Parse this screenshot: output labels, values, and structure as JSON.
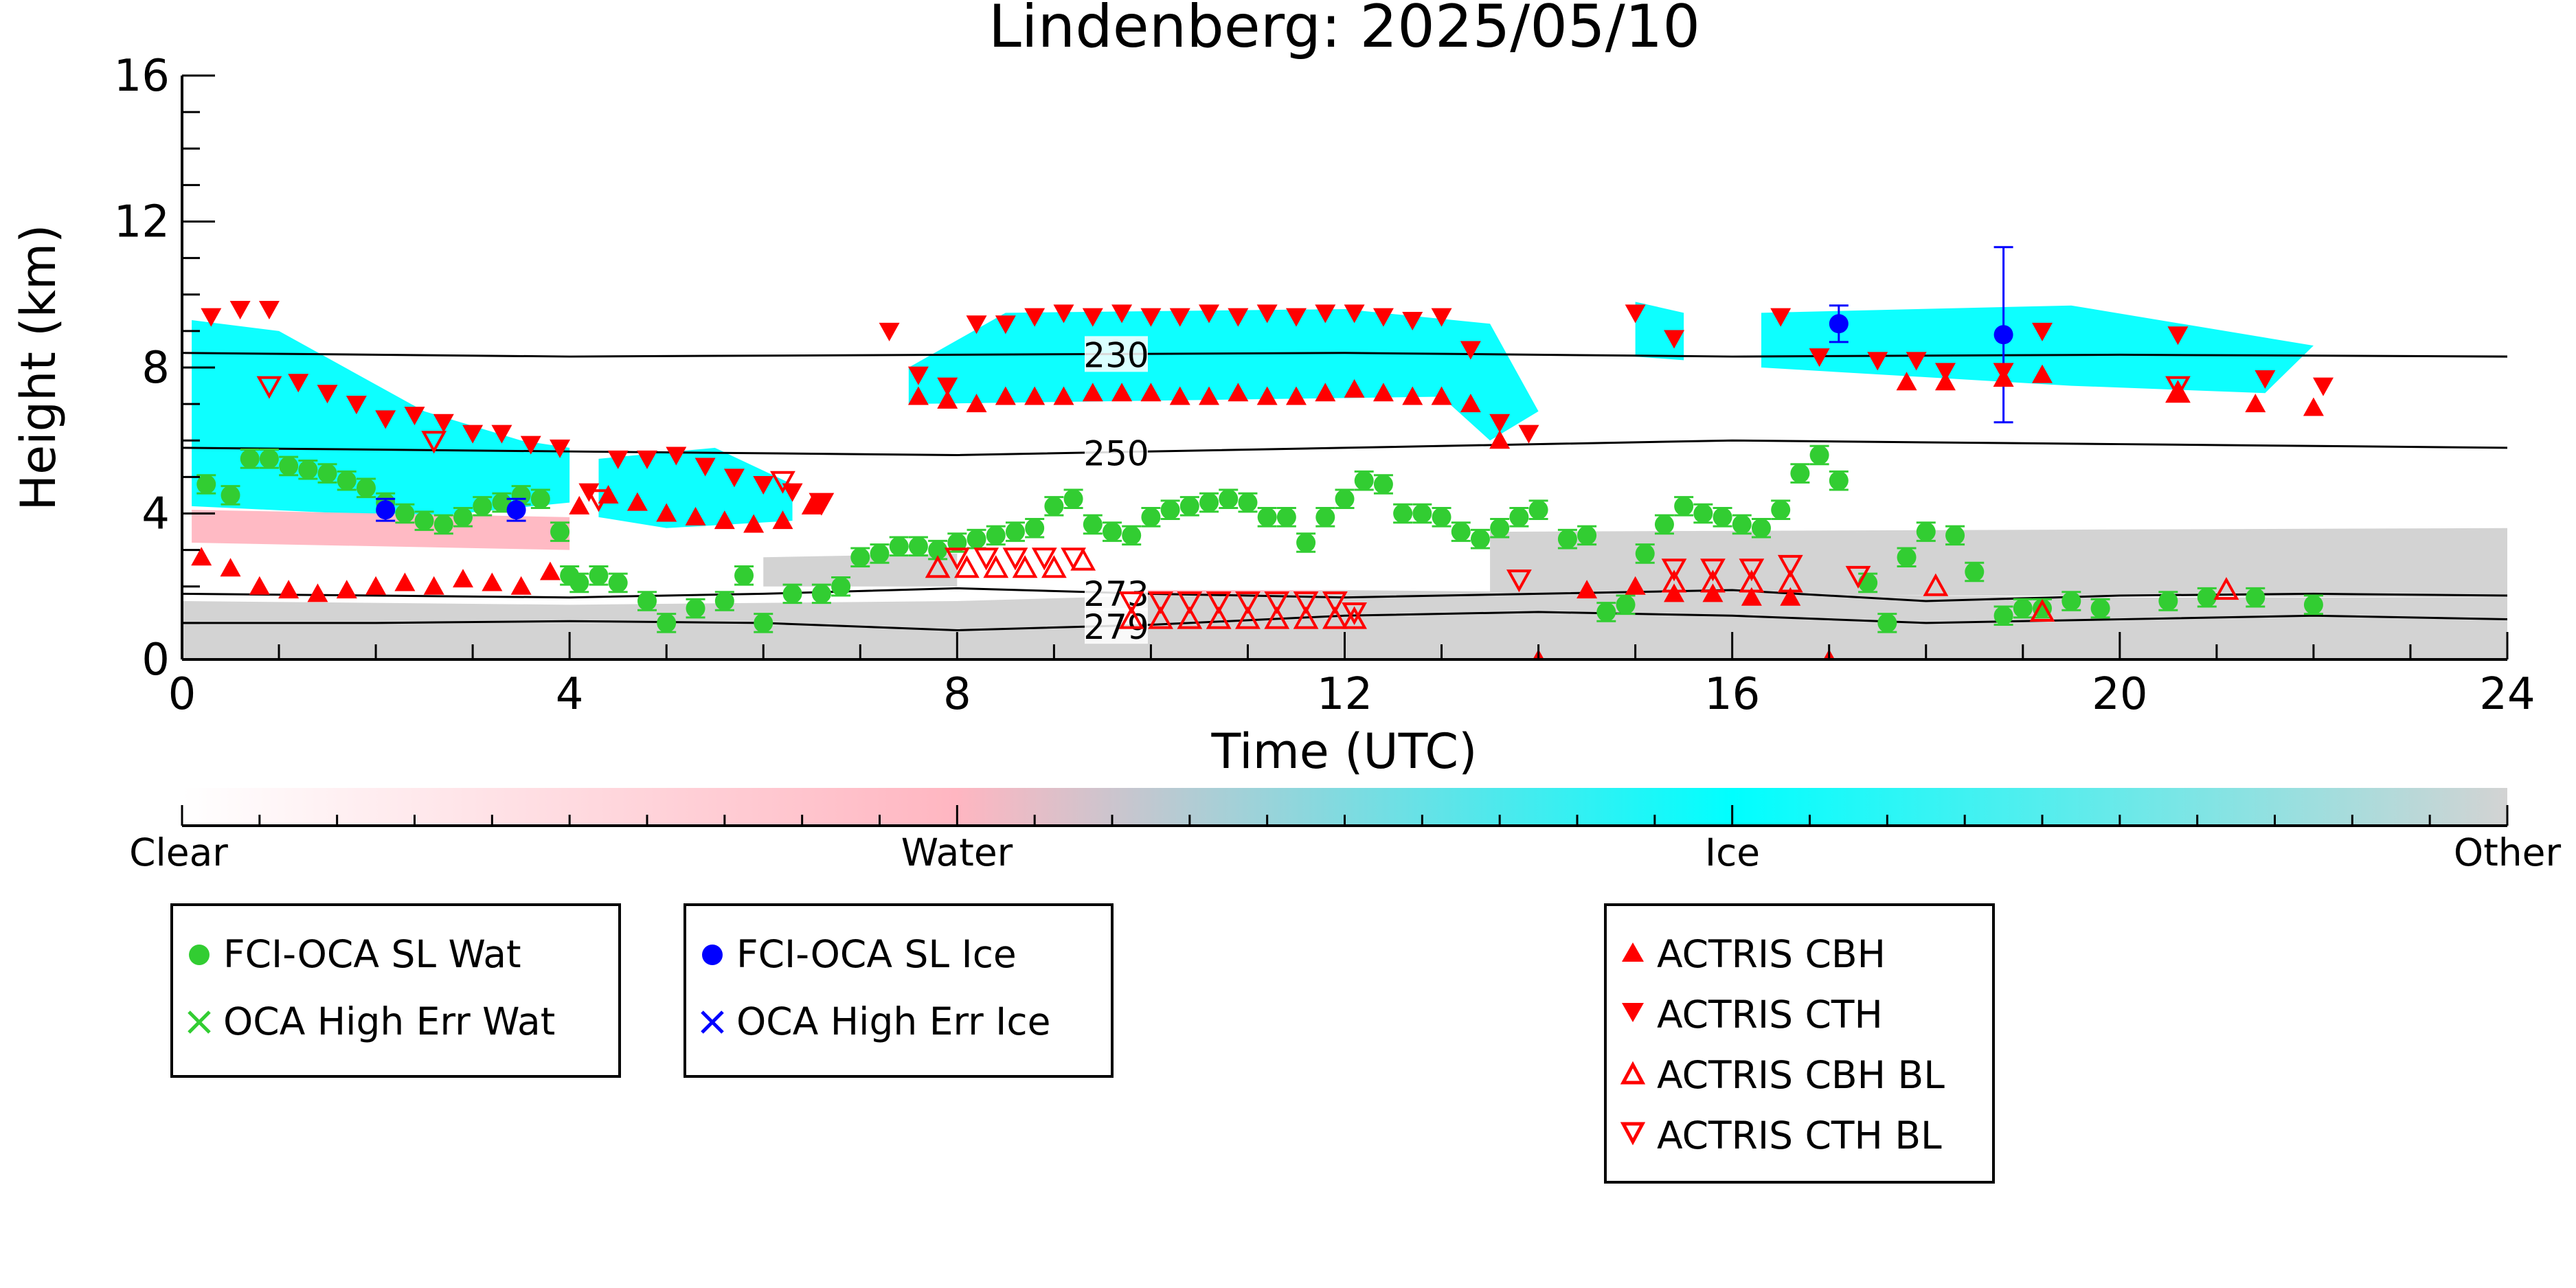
{
  "chart_data": {
    "type": "scatter",
    "title": "Lindenberg: 2025/05/10",
    "xlabel": "Time (UTC)",
    "ylabel": "Height (km)",
    "xlim": [
      0,
      24
    ],
    "ylim": [
      0,
      16
    ],
    "xticks": [
      0,
      4,
      8,
      12,
      16,
      20,
      24
    ],
    "yticks": [
      0,
      4,
      8,
      12,
      16
    ],
    "grid": false,
    "background_mask": {
      "classes": [
        "Clear",
        "Water",
        "Ice",
        "Other"
      ],
      "colors": {
        "Water": "#ffb6c1",
        "Ice": "#00ffff",
        "Other": "#d3d3d3"
      },
      "regions": [
        {
          "class": "Ice",
          "points": [
            [
              0.1,
              9.3
            ],
            [
              1.0,
              9.0
            ],
            [
              2.5,
              6.8
            ],
            [
              3.5,
              6.0
            ],
            [
              4.0,
              5.8
            ],
            [
              4.0,
              4.3
            ],
            [
              2.5,
              3.9
            ],
            [
              0.1,
              4.2
            ]
          ]
        },
        {
          "class": "Ice",
          "points": [
            [
              4.3,
              5.5
            ],
            [
              5.5,
              5.8
            ],
            [
              6.3,
              4.8
            ],
            [
              6.3,
              3.8
            ],
            [
              5.0,
              3.6
            ],
            [
              4.3,
              3.9
            ]
          ]
        },
        {
          "class": "Ice",
          "points": [
            [
              7.5,
              8.0
            ],
            [
              8.5,
              9.5
            ],
            [
              12.0,
              9.6
            ],
            [
              13.5,
              9.2
            ],
            [
              14.0,
              6.8
            ],
            [
              13.5,
              6.0
            ],
            [
              13.0,
              7.2
            ],
            [
              7.5,
              7.0
            ]
          ]
        },
        {
          "class": "Ice",
          "points": [
            [
              15.0,
              9.8
            ],
            [
              15.5,
              9.5
            ],
            [
              15.5,
              8.2
            ],
            [
              15.0,
              8.3
            ]
          ]
        },
        {
          "class": "Ice",
          "points": [
            [
              16.3,
              9.5
            ],
            [
              19.5,
              9.7
            ],
            [
              22.0,
              8.6
            ],
            [
              21.5,
              7.3
            ],
            [
              19.5,
              7.5
            ],
            [
              16.3,
              8.0
            ]
          ]
        },
        {
          "class": "Ice",
          "points": [
            [
              14.6,
              2.4
            ],
            [
              16.8,
              2.6
            ],
            [
              16.8,
              1.6
            ],
            [
              14.6,
              1.7
            ]
          ]
        },
        {
          "class": "Water",
          "points": [
            [
              0.1,
              4.1
            ],
            [
              4.0,
              3.9
            ],
            [
              4.0,
              3.0
            ],
            [
              0.1,
              3.2
            ]
          ]
        },
        {
          "class": "Water",
          "points": [
            [
              9.8,
              1.9
            ],
            [
              12.0,
              1.9
            ],
            [
              12.0,
              0.9
            ],
            [
              9.8,
              0.9
            ]
          ]
        },
        {
          "class": "Other",
          "points": [
            [
              0,
              1.6
            ],
            [
              4,
              1.5
            ],
            [
              8,
              1.6
            ],
            [
              12,
              1.9
            ],
            [
              16,
              1.8
            ],
            [
              20,
              1.7
            ],
            [
              24,
              1.7
            ],
            [
              24,
              0
            ],
            [
              0,
              0
            ]
          ]
        },
        {
          "class": "Other",
          "points": [
            [
              6,
              2.8
            ],
            [
              8,
              2.9
            ],
            [
              8,
              2.0
            ],
            [
              6,
              2.0
            ]
          ]
        },
        {
          "class": "Other",
          "points": [
            [
              13.5,
              3.5
            ],
            [
              24,
              3.6
            ],
            [
              24,
              1.7
            ],
            [
              13.5,
              1.8
            ]
          ]
        }
      ]
    },
    "isotherms": [
      {
        "label": "230",
        "label_x": 9.6,
        "x": [
          0,
          4,
          8,
          12,
          16,
          20,
          24
        ],
        "y": [
          8.4,
          8.3,
          8.35,
          8.4,
          8.3,
          8.35,
          8.3
        ]
      },
      {
        "label": "250",
        "label_x": 9.6,
        "x": [
          0,
          4,
          8,
          12,
          16,
          20,
          24
        ],
        "y": [
          5.8,
          5.7,
          5.6,
          5.8,
          6.0,
          5.9,
          5.8
        ]
      },
      {
        "label": "273",
        "label_x": 9.6,
        "x": [
          0,
          2,
          4,
          6,
          8,
          10,
          12,
          14,
          16,
          18,
          20,
          22,
          24
        ],
        "y": [
          1.8,
          1.75,
          1.7,
          1.8,
          1.95,
          1.8,
          1.7,
          1.8,
          1.9,
          1.6,
          1.75,
          1.8,
          1.75
        ]
      },
      {
        "label": "279",
        "label_x": 9.6,
        "x": [
          0,
          2,
          4,
          6,
          8,
          10,
          12,
          14,
          16,
          18,
          20,
          22,
          24
        ],
        "y": [
          1.0,
          1.0,
          1.05,
          1.0,
          0.8,
          0.95,
          1.2,
          1.3,
          1.2,
          1.0,
          1.1,
          1.2,
          1.1
        ]
      }
    ],
    "series": [
      {
        "name": "FCI-OCA SL Wat",
        "marker": "circle",
        "color": "#32cd32",
        "x": [
          0.25,
          0.5,
          0.7,
          0.9,
          1.1,
          1.3,
          1.5,
          1.7,
          1.9,
          2.1,
          2.3,
          2.5,
          2.7,
          2.9,
          3.1,
          3.3,
          3.5,
          3.7,
          3.9,
          4.0,
          4.1,
          4.3,
          4.5,
          4.8,
          5.0,
          5.3,
          5.6,
          5.8,
          6.0,
          6.3,
          6.6,
          6.8,
          7.0,
          7.2,
          7.4,
          7.6,
          7.8,
          8.0,
          8.2,
          8.4,
          8.6,
          8.8,
          9.0,
          9.2,
          9.4,
          9.6,
          9.8,
          10.0,
          10.2,
          10.4,
          10.6,
          10.8,
          11.0,
          11.2,
          11.4,
          11.6,
          11.8,
          12.0,
          12.2,
          12.4,
          12.6,
          12.8,
          13.0,
          13.2,
          13.4,
          13.6,
          13.8,
          14.0,
          14.3,
          14.5,
          14.7,
          14.9,
          15.1,
          15.3,
          15.5,
          15.7,
          15.9,
          16.1,
          16.3,
          16.5,
          16.7,
          16.9,
          17.1,
          17.4,
          17.6,
          17.8,
          18.0,
          18.3,
          18.5,
          18.8,
          19.0,
          19.2,
          19.5,
          19.8,
          20.5,
          20.9,
          21.4,
          22.0
        ],
        "y": [
          4.8,
          4.5,
          5.5,
          5.5,
          5.3,
          5.2,
          5.1,
          4.9,
          4.7,
          4.3,
          4.0,
          3.8,
          3.7,
          3.9,
          4.2,
          4.3,
          4.5,
          4.4,
          3.5,
          2.3,
          2.1,
          2.3,
          2.1,
          1.6,
          1.0,
          1.4,
          1.6,
          2.3,
          1.0,
          1.8,
          1.8,
          2.0,
          2.8,
          2.9,
          3.1,
          3.1,
          3.0,
          3.2,
          3.3,
          3.4,
          3.5,
          3.6,
          4.2,
          4.4,
          3.7,
          3.5,
          3.4,
          3.9,
          4.1,
          4.2,
          4.3,
          4.4,
          4.3,
          3.9,
          3.9,
          3.2,
          3.9,
          4.4,
          4.9,
          4.8,
          4.0,
          4.0,
          3.9,
          3.5,
          3.3,
          3.6,
          3.9,
          4.1,
          3.3,
          3.4,
          1.3,
          1.5,
          2.9,
          3.7,
          4.2,
          4.0,
          3.9,
          3.7,
          3.6,
          4.1,
          5.1,
          5.6,
          4.9,
          2.1,
          1.0,
          2.8,
          3.5,
          3.4,
          2.4,
          1.2,
          1.4,
          1.4,
          1.6,
          1.4,
          1.6,
          1.7,
          1.7,
          1.5
        ]
      },
      {
        "name": "FCI-OCA SL Ice",
        "marker": "circle",
        "color": "#0000ff",
        "x": [
          2.1,
          3.45,
          17.1,
          18.8
        ],
        "y": [
          4.1,
          4.1,
          9.2,
          8.9
        ],
        "yerr": [
          0.3,
          0.3,
          0.5,
          2.4
        ]
      },
      {
        "name": "OCA High Err Wat",
        "marker": "x",
        "color": "#32cd32",
        "x": [],
        "y": []
      },
      {
        "name": "OCA High Err Ice",
        "marker": "x",
        "color": "#0000ff",
        "x": [],
        "y": []
      },
      {
        "name": "ACTRIS CBH",
        "marker": "triangle-up",
        "color": "#ff0000",
        "x": [
          0.2,
          0.5,
          0.8,
          1.1,
          1.4,
          1.7,
          2.0,
          2.3,
          2.6,
          2.9,
          3.2,
          3.5,
          3.8,
          4.1,
          4.4,
          4.7,
          5.0,
          5.3,
          5.6,
          5.9,
          6.2,
          6.5,
          7.6,
          7.9,
          8.2,
          8.5,
          8.8,
          9.1,
          9.4,
          9.7,
          10.0,
          10.3,
          10.6,
          10.9,
          11.2,
          11.5,
          11.8,
          12.1,
          12.4,
          12.7,
          13.0,
          13.3,
          13.6,
          14.0,
          14.5,
          15.0,
          15.4,
          15.8,
          16.2,
          16.6,
          17.0,
          17.8,
          18.2,
          18.8,
          19.2,
          20.6,
          21.4,
          22.0
        ],
        "y": [
          2.8,
          2.5,
          2.0,
          1.9,
          1.8,
          1.9,
          2.0,
          2.1,
          2.0,
          2.2,
          2.1,
          2.0,
          2.4,
          4.2,
          4.5,
          4.3,
          4.0,
          3.9,
          3.8,
          3.7,
          3.8,
          4.2,
          7.2,
          7.1,
          7.0,
          7.2,
          7.2,
          7.2,
          7.3,
          7.3,
          7.3,
          7.2,
          7.2,
          7.3,
          7.2,
          7.2,
          7.3,
          7.4,
          7.3,
          7.2,
          7.2,
          7.0,
          6.0,
          0.0,
          1.9,
          2.0,
          1.8,
          1.8,
          1.7,
          1.7,
          0.0,
          7.6,
          7.6,
          7.7,
          7.8,
          7.3,
          7.0,
          6.9
        ]
      },
      {
        "name": "ACTRIS CTH",
        "marker": "triangle-down",
        "color": "#ff0000",
        "x": [
          0.3,
          0.6,
          0.9,
          1.2,
          1.5,
          1.8,
          2.1,
          2.4,
          2.7,
          3.0,
          3.3,
          3.6,
          3.9,
          4.2,
          4.5,
          4.8,
          5.1,
          5.4,
          5.7,
          6.0,
          6.3,
          6.6,
          7.3,
          7.6,
          7.9,
          8.2,
          8.5,
          8.8,
          9.1,
          9.4,
          9.7,
          10.0,
          10.3,
          10.6,
          10.9,
          11.2,
          11.5,
          11.8,
          12.1,
          12.4,
          12.7,
          13.0,
          13.3,
          13.6,
          13.9,
          15.0,
          15.4,
          16.5,
          16.9,
          17.5,
          17.9,
          18.2,
          18.8,
          19.2,
          20.6,
          21.5,
          22.1
        ],
        "y": [
          9.4,
          9.6,
          9.6,
          7.6,
          7.3,
          7.0,
          6.6,
          6.7,
          6.5,
          6.2,
          6.2,
          5.9,
          5.8,
          4.6,
          5.5,
          5.5,
          5.6,
          5.3,
          5.0,
          4.8,
          4.6,
          4.3,
          9.0,
          7.8,
          7.5,
          9.2,
          9.2,
          9.4,
          9.5,
          9.4,
          9.5,
          9.4,
          9.4,
          9.5,
          9.4,
          9.5,
          9.4,
          9.5,
          9.5,
          9.4,
          9.3,
          9.4,
          8.5,
          6.5,
          6.2,
          9.5,
          8.8,
          9.4,
          8.3,
          8.2,
          8.2,
          7.9,
          7.9,
          9.0,
          8.9,
          7.7,
          7.5
        ]
      },
      {
        "name": "ACTRIS CBH BL",
        "marker": "triangle-up-open",
        "color": "#ff0000",
        "x": [
          7.8,
          8.1,
          8.4,
          8.7,
          9.0,
          9.3,
          9.8,
          10.1,
          10.4,
          10.7,
          11.0,
          11.3,
          11.6,
          11.9,
          12.1,
          15.4,
          15.8,
          16.2,
          16.6,
          18.1,
          19.2,
          20.6,
          21.1
        ],
        "y": [
          2.5,
          2.5,
          2.5,
          2.5,
          2.5,
          2.7,
          1.1,
          1.1,
          1.1,
          1.1,
          1.1,
          1.1,
          1.1,
          1.1,
          1.1,
          2.1,
          2.1,
          2.1,
          2.1,
          2.0,
          1.3,
          7.3,
          1.9
        ]
      },
      {
        "name": "ACTRIS CTH BL",
        "marker": "triangle-down-open",
        "color": "#ff0000",
        "x": [
          0.9,
          2.6,
          4.3,
          6.2,
          6.6,
          8.0,
          8.3,
          8.6,
          8.9,
          9.2,
          9.8,
          10.1,
          10.4,
          10.7,
          11.0,
          11.3,
          11.6,
          11.9,
          12.1,
          13.8,
          15.4,
          15.8,
          16.2,
          16.6,
          17.3,
          20.6
        ],
        "y": [
          7.5,
          6.0,
          4.4,
          4.9,
          4.3,
          2.8,
          2.8,
          2.8,
          2.8,
          2.8,
          1.6,
          1.6,
          1.6,
          1.6,
          1.6,
          1.6,
          1.6,
          1.6,
          1.3,
          2.2,
          2.5,
          2.5,
          2.5,
          2.6,
          2.3,
          7.5
        ]
      }
    ],
    "colorbar": {
      "labels": [
        "Clear",
        "Water",
        "Ice",
        "Other"
      ],
      "stops": [
        "#ffffff",
        "#ffb6c1",
        "#00ffff",
        "#d3d3d3"
      ]
    },
    "legends": [
      {
        "entries": [
          "FCI-OCA SL Wat",
          "OCA High Err Wat"
        ]
      },
      {
        "entries": [
          "FCI-OCA SL Ice",
          "OCA High Err Ice"
        ]
      },
      {
        "entries": [
          "ACTRIS CBH",
          "ACTRIS CTH",
          "ACTRIS CBH BL",
          "ACTRIS CTH BL"
        ]
      }
    ]
  }
}
